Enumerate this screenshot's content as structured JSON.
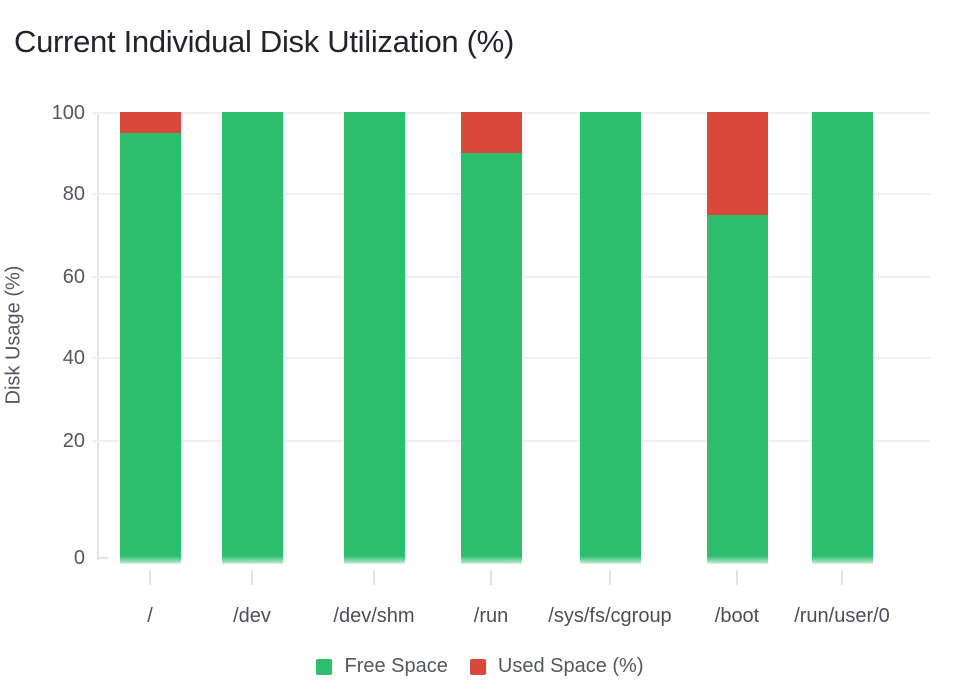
{
  "title": "Current Individual Disk Utilization (%)",
  "y_axis": {
    "label": "Disk Usage (%)",
    "ticks": [
      "100",
      "80",
      "60",
      "40",
      "20",
      "0"
    ]
  },
  "x_axis": {
    "categories": [
      "/",
      "/dev",
      "/dev/shm",
      "/run",
      "/sys/fs/cgroup",
      "/boot",
      "/run/user/0"
    ]
  },
  "legend": {
    "items": [
      {
        "label": "Free Space",
        "color": "#2dbf6e"
      },
      {
        "label": "Used Space (%)",
        "color": "#d9493b"
      }
    ]
  },
  "colors": {
    "free": "#2dbf6e",
    "used": "#d9493b",
    "grid": "#efefef",
    "axis": "#e4e4e4",
    "tick_text": "#54585c",
    "title_text": "#212529"
  },
  "chart_data": {
    "type": "bar",
    "stacked": true,
    "title": "Current Individual Disk Utilization (%)",
    "ylabel": "Disk Usage (%)",
    "xlabel": "",
    "ylim": [
      0,
      100
    ],
    "yticks": [
      0,
      20,
      40,
      60,
      80,
      100
    ],
    "grid": true,
    "legend_position": "bottom",
    "categories": [
      "/",
      "/dev",
      "/dev/shm",
      "/run",
      "/sys/fs/cgroup",
      "/boot",
      "/run/user/0"
    ],
    "series": [
      {
        "name": "Free Space",
        "color": "#2dbf6e",
        "values": [
          95,
          100,
          100,
          90,
          100,
          75,
          100
        ]
      },
      {
        "name": "Used Space (%)",
        "color": "#d9493b",
        "values": [
          5,
          0,
          0,
          10,
          0,
          25,
          0
        ]
      }
    ]
  }
}
